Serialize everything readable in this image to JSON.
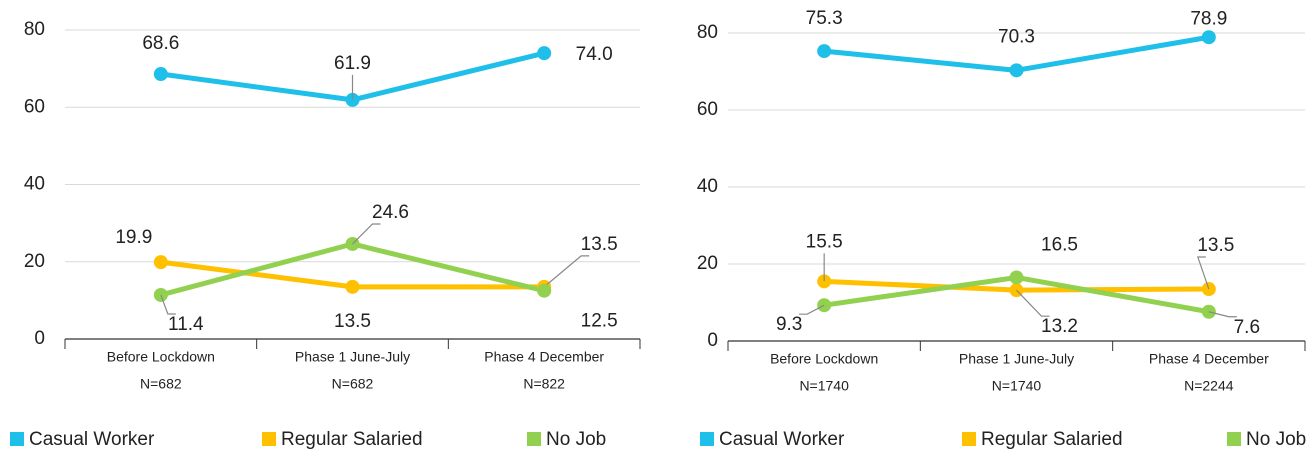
{
  "chart_data": [
    {
      "type": "line",
      "categories": [
        [
          "Before Lockdown",
          "N=682"
        ],
        [
          "Phase 1 June-July",
          "N=682"
        ],
        [
          "Phase 4 December",
          "N=822"
        ]
      ],
      "series": [
        {
          "name": "Casual Worker",
          "color": "#1ebfe8",
          "values": [
            68.6,
            61.9,
            74.0
          ],
          "value_labels": [
            "68.6",
            "61.9",
            "74.0"
          ]
        },
        {
          "name": "Regular Salaried",
          "color": "#ffc000",
          "values": [
            19.9,
            13.5,
            13.5
          ],
          "value_labels": [
            "19.9",
            "13.5",
            "13.5"
          ]
        },
        {
          "name": "No Job",
          "color": "#92d050",
          "values": [
            11.4,
            24.6,
            12.5
          ],
          "value_labels": [
            "11.4",
            "24.6",
            "12.5"
          ]
        }
      ],
      "ylim": [
        0,
        80
      ],
      "yticks": [
        0,
        20,
        40,
        60,
        80
      ],
      "grid": true
    },
    {
      "type": "line",
      "categories": [
        [
          "Before Lockdown",
          "N=1740"
        ],
        [
          "Phase 1 June-July",
          "N=1740"
        ],
        [
          "Phase 4 December",
          "N=2244"
        ]
      ],
      "series": [
        {
          "name": "Casual Worker",
          "color": "#1ebfe8",
          "values": [
            75.3,
            70.3,
            78.9
          ],
          "value_labels": [
            "75.3",
            "70.3",
            "78.9"
          ]
        },
        {
          "name": "Regular Salaried",
          "color": "#ffc000",
          "values": [
            15.5,
            13.2,
            13.5
          ],
          "value_labels": [
            "15.5",
            "13.2",
            "13.5"
          ]
        },
        {
          "name": "No Job",
          "color": "#92d050",
          "values": [
            9.3,
            16.5,
            7.6
          ],
          "value_labels": [
            "9.3",
            "16.5",
            "7.6"
          ]
        }
      ],
      "ylim": [
        0,
        80
      ],
      "yticks": [
        0,
        20,
        40,
        60,
        80
      ],
      "grid": true
    }
  ]
}
